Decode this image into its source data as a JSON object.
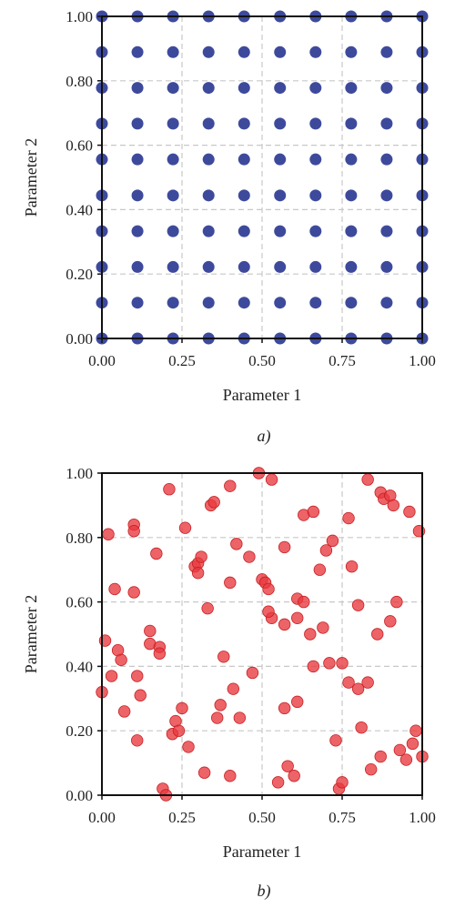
{
  "figure": {
    "subcaptions": [
      "a)",
      "b)"
    ]
  },
  "chart_data": [
    {
      "type": "scatter",
      "xlabel": "Parameter 1",
      "ylabel": "Parameter 2",
      "xlim": [
        0,
        1
      ],
      "ylim": [
        0,
        1
      ],
      "x_ticks": [
        "0.00",
        "0.25",
        "0.50",
        "0.75",
        "1.00"
      ],
      "y_ticks": [
        "0.00",
        "0.20",
        "0.40",
        "0.60",
        "0.80",
        "1.00"
      ],
      "grid": true,
      "point_color": "#3d4a9c",
      "grid_design": {
        "x_values": [
          0,
          0.111,
          0.222,
          0.333,
          0.444,
          0.556,
          0.667,
          0.778,
          0.889,
          1.0
        ],
        "y_values": [
          0,
          0.111,
          0.222,
          0.333,
          0.444,
          0.556,
          0.667,
          0.778,
          0.889,
          1.0
        ]
      }
    },
    {
      "type": "scatter",
      "xlabel": "Parameter 1",
      "ylabel": "Parameter 2",
      "xlim": [
        0,
        1
      ],
      "ylim": [
        0,
        1
      ],
      "x_ticks": [
        "0.00",
        "0.25",
        "0.50",
        "0.75",
        "1.00"
      ],
      "y_ticks": [
        "0.00",
        "0.20",
        "0.40",
        "0.60",
        "0.80",
        "1.00"
      ],
      "grid": true,
      "point_color": "#e8393d",
      "points": [
        [
          0.02,
          0.81
        ],
        [
          0.1,
          0.84
        ],
        [
          0.1,
          0.82
        ],
        [
          0.21,
          0.95
        ],
        [
          0.26,
          0.83
        ],
        [
          0.34,
          0.9
        ],
        [
          0.35,
          0.91
        ],
        [
          0.4,
          0.96
        ],
        [
          0.49,
          1.0
        ],
        [
          0.53,
          0.98
        ],
        [
          0.63,
          0.87
        ],
        [
          0.66,
          0.88
        ],
        [
          0.77,
          0.86
        ],
        [
          0.83,
          0.98
        ],
        [
          0.87,
          0.94
        ],
        [
          0.88,
          0.92
        ],
        [
          0.9,
          0.93
        ],
        [
          0.91,
          0.9
        ],
        [
          0.96,
          0.88
        ],
        [
          0.99,
          0.82
        ],
        [
          0.04,
          0.64
        ],
        [
          0.1,
          0.63
        ],
        [
          0.17,
          0.75
        ],
        [
          0.29,
          0.71
        ],
        [
          0.3,
          0.72
        ],
        [
          0.31,
          0.74
        ],
        [
          0.33,
          0.58
        ],
        [
          0.4,
          0.66
        ],
        [
          0.42,
          0.78
        ],
        [
          0.46,
          0.74
        ],
        [
          0.5,
          0.67
        ],
        [
          0.51,
          0.66
        ],
        [
          0.52,
          0.64
        ],
        [
          0.57,
          0.77
        ],
        [
          0.61,
          0.61
        ],
        [
          0.63,
          0.6
        ],
        [
          0.68,
          0.7
        ],
        [
          0.7,
          0.76
        ],
        [
          0.72,
          0.79
        ],
        [
          0.78,
          0.71
        ],
        [
          0.8,
          0.59
        ],
        [
          0.57,
          0.53
        ],
        [
          0.61,
          0.55
        ],
        [
          0.65,
          0.5
        ],
        [
          0.53,
          0.55
        ],
        [
          0.52,
          0.57
        ],
        [
          0.01,
          0.48
        ],
        [
          0.05,
          0.45
        ],
        [
          0.06,
          0.42
        ],
        [
          0.15,
          0.51
        ],
        [
          0.15,
          0.47
        ],
        [
          0.18,
          0.46
        ],
        [
          0.18,
          0.44
        ],
        [
          0.3,
          0.69
        ],
        [
          0.92,
          0.6
        ],
        [
          0.9,
          0.54
        ],
        [
          0.86,
          0.5
        ],
        [
          0.0,
          0.32
        ],
        [
          0.03,
          0.37
        ],
        [
          0.11,
          0.37
        ],
        [
          0.12,
          0.31
        ],
        [
          0.07,
          0.26
        ],
        [
          0.38,
          0.43
        ],
        [
          0.41,
          0.33
        ],
        [
          0.37,
          0.28
        ],
        [
          0.36,
          0.24
        ],
        [
          0.43,
          0.24
        ],
        [
          0.47,
          0.38
        ],
        [
          0.57,
          0.27
        ],
        [
          0.61,
          0.29
        ],
        [
          0.66,
          0.4
        ],
        [
          0.69,
          0.52
        ],
        [
          0.71,
          0.41
        ],
        [
          0.75,
          0.41
        ],
        [
          0.77,
          0.35
        ],
        [
          0.8,
          0.33
        ],
        [
          0.83,
          0.35
        ],
        [
          0.81,
          0.21
        ],
        [
          0.25,
          0.27
        ],
        [
          0.11,
          0.17
        ],
        [
          0.22,
          0.19
        ],
        [
          0.23,
          0.23
        ],
        [
          0.24,
          0.2
        ],
        [
          0.27,
          0.15
        ],
        [
          0.32,
          0.07
        ],
        [
          0.4,
          0.06
        ],
        [
          0.55,
          0.04
        ],
        [
          0.58,
          0.09
        ],
        [
          0.6,
          0.06
        ],
        [
          0.73,
          0.17
        ],
        [
          0.74,
          0.02
        ],
        [
          0.75,
          0.04
        ],
        [
          0.84,
          0.08
        ],
        [
          0.87,
          0.12
        ],
        [
          0.93,
          0.14
        ],
        [
          0.95,
          0.11
        ],
        [
          0.97,
          0.16
        ],
        [
          0.98,
          0.2
        ],
        [
          1.0,
          0.12
        ],
        [
          0.19,
          0.02
        ],
        [
          0.2,
          0.0
        ]
      ]
    }
  ]
}
